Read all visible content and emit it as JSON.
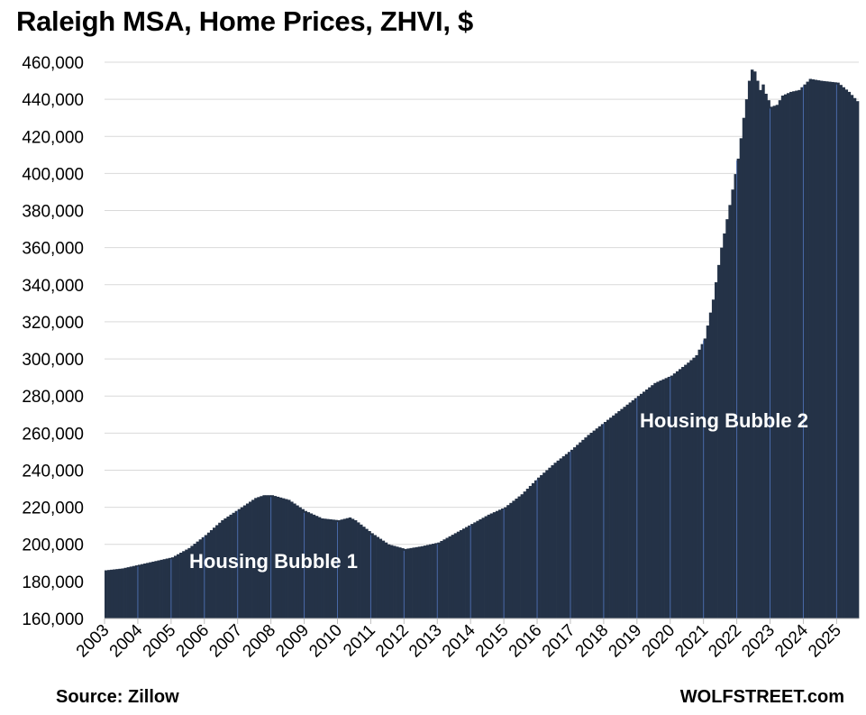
{
  "chart_data": {
    "type": "bar",
    "title": "Raleigh MSA, Home Prices, ZHVI, $",
    "xlabel": "",
    "ylabel": "",
    "ylim": [
      160000,
      460000
    ],
    "y_ticks": [
      "160,000",
      "180,000",
      "200,000",
      "220,000",
      "240,000",
      "260,000",
      "280,000",
      "300,000",
      "320,000",
      "340,000",
      "360,000",
      "380,000",
      "400,000",
      "420,000",
      "440,000",
      "460,000"
    ],
    "x_ticks": [
      "2003",
      "2004",
      "2005",
      "2006",
      "2007",
      "2008",
      "2009",
      "2010",
      "2011",
      "2012",
      "2013",
      "2014",
      "2015",
      "2016",
      "2017",
      "2018",
      "2019",
      "2020",
      "2021",
      "2022",
      "2023",
      "2024",
      "2025"
    ],
    "frequency": "monthly, Jan 2003 - Aug 2025",
    "bar_color": "#243247",
    "year_line_color": "#4a6aa8",
    "gridlines": true,
    "anchors": [
      [
        "2003-01",
        186000
      ],
      [
        "2003-07",
        187000
      ],
      [
        "2004-01",
        189000
      ],
      [
        "2004-07",
        191000
      ],
      [
        "2005-01",
        193000
      ],
      [
        "2005-07",
        198000
      ],
      [
        "2006-01",
        205000
      ],
      [
        "2006-07",
        213000
      ],
      [
        "2007-01",
        219000
      ],
      [
        "2007-07",
        225000
      ],
      [
        "2007-10",
        226500
      ],
      [
        "2008-01",
        226500
      ],
      [
        "2008-07",
        224000
      ],
      [
        "2009-01",
        218000
      ],
      [
        "2009-07",
        214000
      ],
      [
        "2010-01",
        213000
      ],
      [
        "2010-05",
        214500
      ],
      [
        "2010-07",
        213000
      ],
      [
        "2011-01",
        206000
      ],
      [
        "2011-07",
        200000
      ],
      [
        "2012-01",
        197500
      ],
      [
        "2012-07",
        199000
      ],
      [
        "2013-01",
        201000
      ],
      [
        "2013-07",
        206000
      ],
      [
        "2014-01",
        211000
      ],
      [
        "2014-07",
        216000
      ],
      [
        "2015-01",
        220000
      ],
      [
        "2015-07",
        227000
      ],
      [
        "2016-01",
        236000
      ],
      [
        "2016-07",
        244000
      ],
      [
        "2017-01",
        251000
      ],
      [
        "2017-07",
        259000
      ],
      [
        "2018-01",
        266000
      ],
      [
        "2018-07",
        273000
      ],
      [
        "2019-01",
        280000
      ],
      [
        "2019-07",
        287000
      ],
      [
        "2020-01",
        291000
      ],
      [
        "2020-07",
        298000
      ],
      [
        "2020-10",
        302000
      ],
      [
        "2021-01",
        311000
      ],
      [
        "2021-04",
        332000
      ],
      [
        "2021-07",
        360000
      ],
      [
        "2021-10",
        383000
      ],
      [
        "2022-01",
        408000
      ],
      [
        "2022-03",
        430000
      ],
      [
        "2022-05",
        450000
      ],
      [
        "2022-06",
        456000
      ],
      [
        "2022-07",
        455000
      ],
      [
        "2022-09",
        445000
      ],
      [
        "2022-10",
        448000
      ],
      [
        "2022-11",
        443000
      ],
      [
        "2023-01",
        436000
      ],
      [
        "2023-03",
        437000
      ],
      [
        "2023-05",
        442000
      ],
      [
        "2023-08",
        444000
      ],
      [
        "2023-11",
        445000
      ],
      [
        "2024-01",
        448000
      ],
      [
        "2024-03",
        451000
      ],
      [
        "2024-07",
        450000
      ],
      [
        "2025-01",
        449000
      ],
      [
        "2025-05",
        444000
      ],
      [
        "2025-08",
        439000
      ]
    ],
    "annotations": [
      "Housing Bubble 1",
      "Housing Bubble 2"
    ]
  },
  "footer": {
    "source": "Source: Zillow",
    "brand": "WOLFSTREET.com"
  }
}
